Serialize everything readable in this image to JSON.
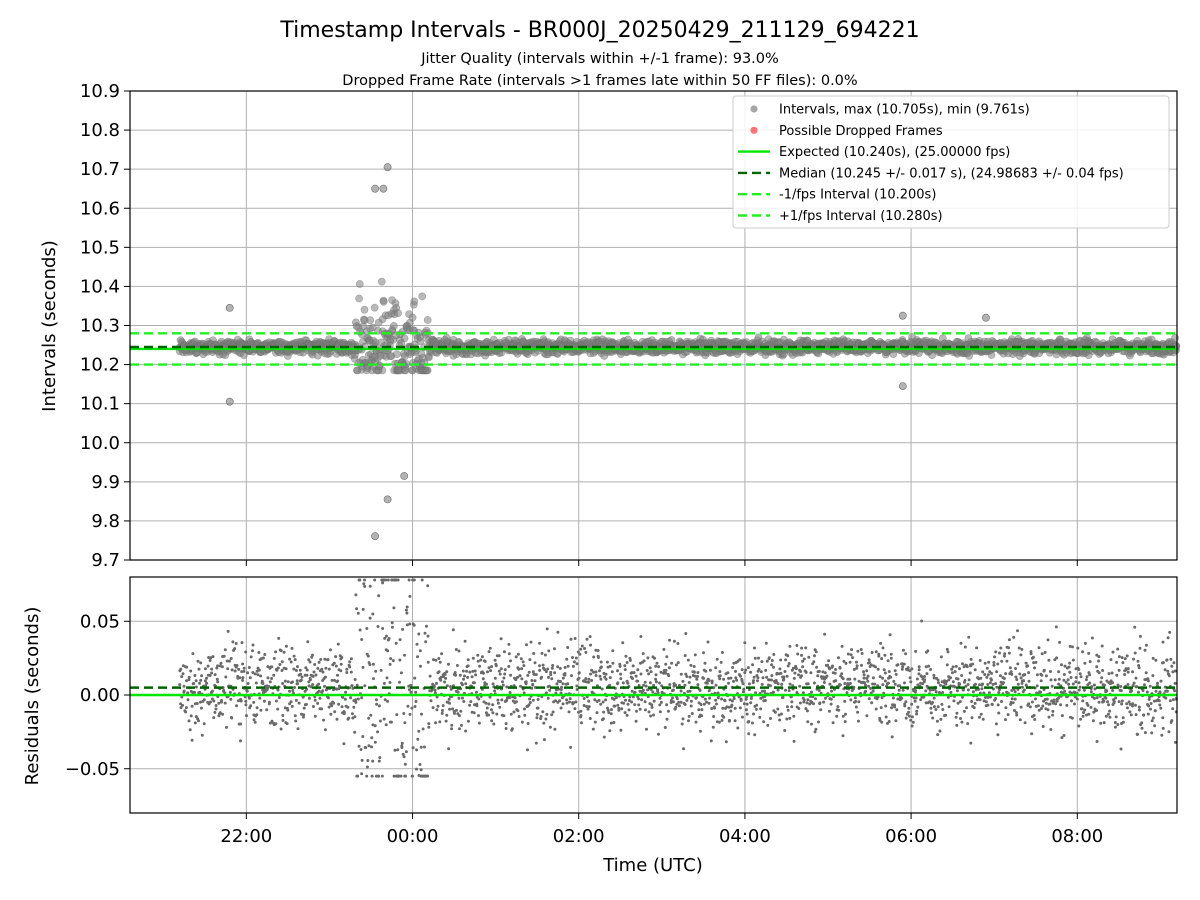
{
  "figure": {
    "title": "Timestamp Intervals - BR000J_20250429_211129_694221",
    "subtitle_1": "Jitter Quality (intervals within +/-1 frame): 93.0%",
    "subtitle_2": "Dropped Frame Rate (intervals >1 frames late within 50 FF files): 0.0%"
  },
  "colors": {
    "points": "#808080",
    "dropped": "#ff3b3b",
    "expected": "#00e600",
    "median": "#006400",
    "interval": "#22ee22"
  },
  "chart_data": [
    {
      "type": "scatter",
      "panel": "top",
      "ylabel": "Intervals (seconds)",
      "xlabel": "",
      "ylim": [
        9.7,
        10.9
      ],
      "y_ticks": [
        "10.9",
        "10.8",
        "10.7",
        "10.6",
        "10.5",
        "10.4",
        "10.3",
        "10.2",
        "10.1",
        "10.0",
        "9.9",
        "9.8",
        "9.7"
      ],
      "x_range_hours": [
        20.6,
        33.2
      ],
      "x_start_hours": 21.2,
      "x_ticks": [
        "22:00",
        "00:00",
        "02:00",
        "04:00",
        "06:00",
        "08:00"
      ],
      "grid": true,
      "legend_position": "top-right",
      "legend": [
        {
          "label": "Intervals, max (10.705s), min (9.761s)",
          "kind": "point",
          "color": "#808080"
        },
        {
          "label": "Possible Dropped Frames",
          "kind": "point",
          "color": "#ff3b3b"
        },
        {
          "label": "Expected (10.240s), (25.00000 fps)",
          "kind": "line",
          "color": "#00e600"
        },
        {
          "label": "Median (10.245 +/- 0.017 s), (24.98683 +/- 0.04 fps)",
          "kind": "dash",
          "color": "#006400"
        },
        {
          "label": "-1/fps Interval (10.200s)",
          "kind": "dash",
          "color": "#22ee22"
        },
        {
          "label": "+1/fps Interval (10.280s)",
          "kind": "dash",
          "color": "#22ee22"
        }
      ],
      "reference_lines": {
        "expected": 10.24,
        "median": 10.245,
        "minus_1_fps": 10.2,
        "plus_1_fps": 10.28
      },
      "summary": {
        "max": 10.705,
        "min": 9.761,
        "median": 10.245,
        "std": 0.017
      },
      "notable_points": [
        {
          "x_hours": 23.7,
          "y": 10.705
        },
        {
          "x_hours": 23.55,
          "y": 10.65
        },
        {
          "x_hours": 23.65,
          "y": 10.65
        },
        {
          "x_hours": 23.55,
          "y": 9.761
        },
        {
          "x_hours": 23.7,
          "y": 9.855
        },
        {
          "x_hours": 23.9,
          "y": 9.915
        },
        {
          "x_hours": 21.8,
          "y": 10.345
        },
        {
          "x_hours": 21.8,
          "y": 10.105
        },
        {
          "x_hours": 29.9,
          "y": 10.325
        },
        {
          "x_hours": 29.9,
          "y": 10.145
        },
        {
          "x_hours": 30.9,
          "y": 10.32
        }
      ]
    },
    {
      "type": "scatter",
      "panel": "bottom",
      "ylabel": "Residuals (seconds)",
      "xlabel": "Time (UTC)",
      "ylim": [
        -0.08,
        0.08
      ],
      "y_tick_values": [
        0.05,
        0.0,
        -0.05
      ],
      "y_ticks": [
        "0.05",
        "0.00",
        "−0.05"
      ],
      "x_ticks": [
        "22:00",
        "00:00",
        "02:00",
        "04:00",
        "06:00",
        "08:00"
      ],
      "grid": true,
      "reference_lines": {
        "expected_residual": 0.0,
        "median_residual": 0.005
      }
    }
  ]
}
